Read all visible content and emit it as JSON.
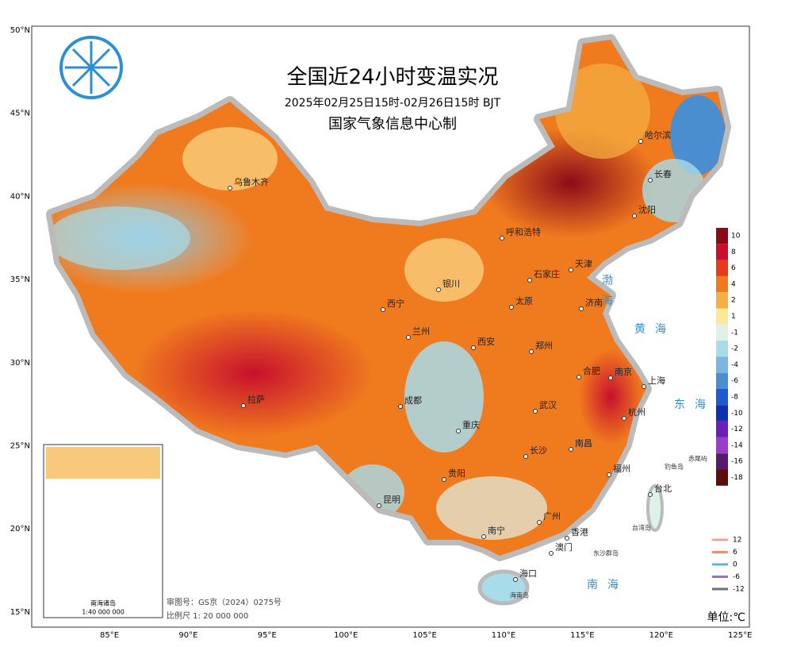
{
  "header": {
    "title": "全国近24小时变温实况",
    "subtitle": "2025年02月25日15时-02月26日15时 BJT",
    "producer": "国家气象信息中心制"
  },
  "axes": {
    "lat_labels": [
      "50°N",
      "45°N",
      "40°N",
      "35°N",
      "30°N",
      "25°N",
      "20°N",
      "15°N"
    ],
    "lon_labels": [
      "85°E",
      "90°E",
      "95°E",
      "100°E",
      "105°E",
      "110°E",
      "115°E",
      "120°E",
      "125°E"
    ]
  },
  "cities": [
    "乌鲁木齐",
    "哈尔滨",
    "长春",
    "沈阳",
    "呼和浩特",
    "天津",
    "石家庄",
    "银川",
    "太原",
    "济南",
    "西宁",
    "兰州",
    "西安",
    "郑州",
    "合肥",
    "南京",
    "上海",
    "成都",
    "拉萨",
    "武汉",
    "杭州",
    "重庆",
    "长沙",
    "南昌",
    "贵阳",
    "福州",
    "台北",
    "昆明",
    "广州",
    "南宁",
    "香港",
    "澳门",
    "海口"
  ],
  "seas": [
    "渤海",
    "黄海",
    "东海",
    "南海"
  ],
  "islands": [
    "东沙群岛",
    "钓鱼岛",
    "赤尾屿",
    "海南岛",
    "台湾岛"
  ],
  "legend": {
    "items": [
      {
        "value": 10,
        "color": "#8b0a1a"
      },
      {
        "value": 8,
        "color": "#c8102e"
      },
      {
        "value": 6,
        "color": "#e8391c"
      },
      {
        "value": 4,
        "color": "#f07a1e"
      },
      {
        "value": 2,
        "color": "#f5b043"
      },
      {
        "value": 1,
        "color": "#fbe99a"
      },
      {
        "value": -1,
        "color": "#dff2e8"
      },
      {
        "value": -2,
        "color": "#a8dcea"
      },
      {
        "value": -4,
        "color": "#7cb6de"
      },
      {
        "value": -6,
        "color": "#4a8ed0"
      },
      {
        "value": -8,
        "color": "#1f5bd0"
      },
      {
        "value": -10,
        "color": "#0f2fb0"
      },
      {
        "value": -12,
        "color": "#6a1fb8"
      },
      {
        "value": -14,
        "color": "#9b3dc8"
      },
      {
        "value": -16,
        "color": "#5a1a6a"
      },
      {
        "value": -18,
        "color": "#5a0f0f"
      }
    ],
    "unit": "单位:℃"
  },
  "isolines": [
    {
      "value": 12,
      "color": "#e8a0a0"
    },
    {
      "value": 6,
      "color": "#e89070"
    },
    {
      "value": 0,
      "color": "#60b0e0"
    },
    {
      "value": -6,
      "color": "#a070c0"
    },
    {
      "value": -12,
      "color": "#707070"
    }
  ],
  "inset": {
    "title": "南海诸岛",
    "scale": "1:40 000 000"
  },
  "footer": {
    "approval": "审图号：GS京（2024）0275号",
    "scale": "比例尺 1: 20 000 000"
  }
}
